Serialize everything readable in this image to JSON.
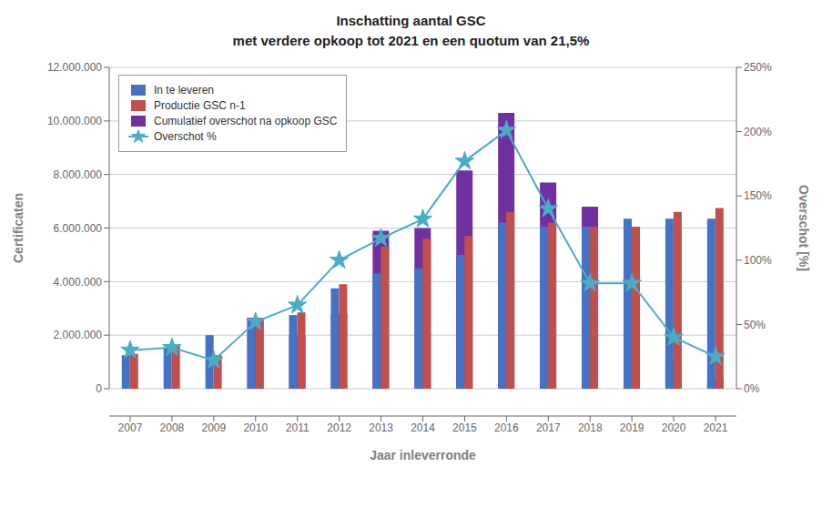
{
  "chart_data": {
    "type": "bar",
    "title": "Inschatting aantal GSC",
    "subtitle": "met verdere opkoop tot 2021 en een quotum van 21,5%",
    "xlabel": "Jaar inleverronde",
    "ylabel": "Certificaten",
    "y2label": "Overschot [%]",
    "categories": [
      "2007",
      "2008",
      "2009",
      "2010",
      "2011",
      "2012",
      "2013",
      "2014",
      "2015",
      "2016",
      "2017",
      "2018",
      "2019",
      "2020",
      "2021"
    ],
    "series": [
      {
        "name": "In te leveren",
        "type": "bar",
        "color": "#4472C4",
        "values": [
          1250000,
          1550000,
          2000000,
          2500000,
          2750000,
          3750000,
          4300000,
          4500000,
          5000000,
          6200000,
          6050000,
          6050000,
          6350000,
          6350000,
          6350000
        ]
      },
      {
        "name": "Productie GSC n-1",
        "type": "bar",
        "color": "#C0504D",
        "values": [
          1300000,
          1600000,
          1250000,
          2650000,
          2850000,
          3900000,
          5300000,
          5600000,
          5700000,
          6600000,
          6200000,
          6050000,
          6050000,
          6600000,
          6750000
        ]
      },
      {
        "name": "Cumulatief overschot na opkoop GSC",
        "type": "bar",
        "color": "#7030A0",
        "values": [
          0,
          0,
          0,
          2650000,
          2000000,
          2800000,
          5900000,
          6000000,
          8150000,
          10300000,
          7700000,
          6800000,
          6050000,
          1050000,
          350000
        ]
      },
      {
        "name": "Overschot %",
        "type": "line",
        "axis": "y2",
        "color": "#4BACC6",
        "marker": "star",
        "values": [
          0.3,
          0.32,
          0.22,
          0.52,
          0.65,
          1.0,
          1.17,
          1.32,
          1.77,
          2.01,
          1.4,
          0.82,
          0.82,
          0.4,
          0.25
        ]
      }
    ],
    "ylim": [
      0,
      12000000
    ],
    "yticks": [
      0,
      {
        "value": 2000000,
        "label": "2.000.000"
      },
      {
        "value": 4000000,
        "label": "4.000.000"
      },
      {
        "value": 6000000,
        "label": "6.000.000"
      },
      {
        "value": 8000000,
        "label": "8.000.000"
      },
      {
        "value": 10000000,
        "label": "10.000.000"
      },
      {
        "value": 12000000,
        "label": "12.000.000"
      }
    ],
    "y2lim": [
      0,
      2.5
    ],
    "y2ticks": [
      {
        "value": 0,
        "label": "0%"
      },
      {
        "value": 0.5,
        "label": "50%"
      },
      {
        "value": 1.0,
        "label": "100%"
      },
      {
        "value": 1.5,
        "label": "150%"
      },
      {
        "value": 2.0,
        "label": "200%"
      },
      {
        "value": 2.5,
        "label": "250%"
      }
    ],
    "grid": true,
    "legend": "upper left"
  }
}
